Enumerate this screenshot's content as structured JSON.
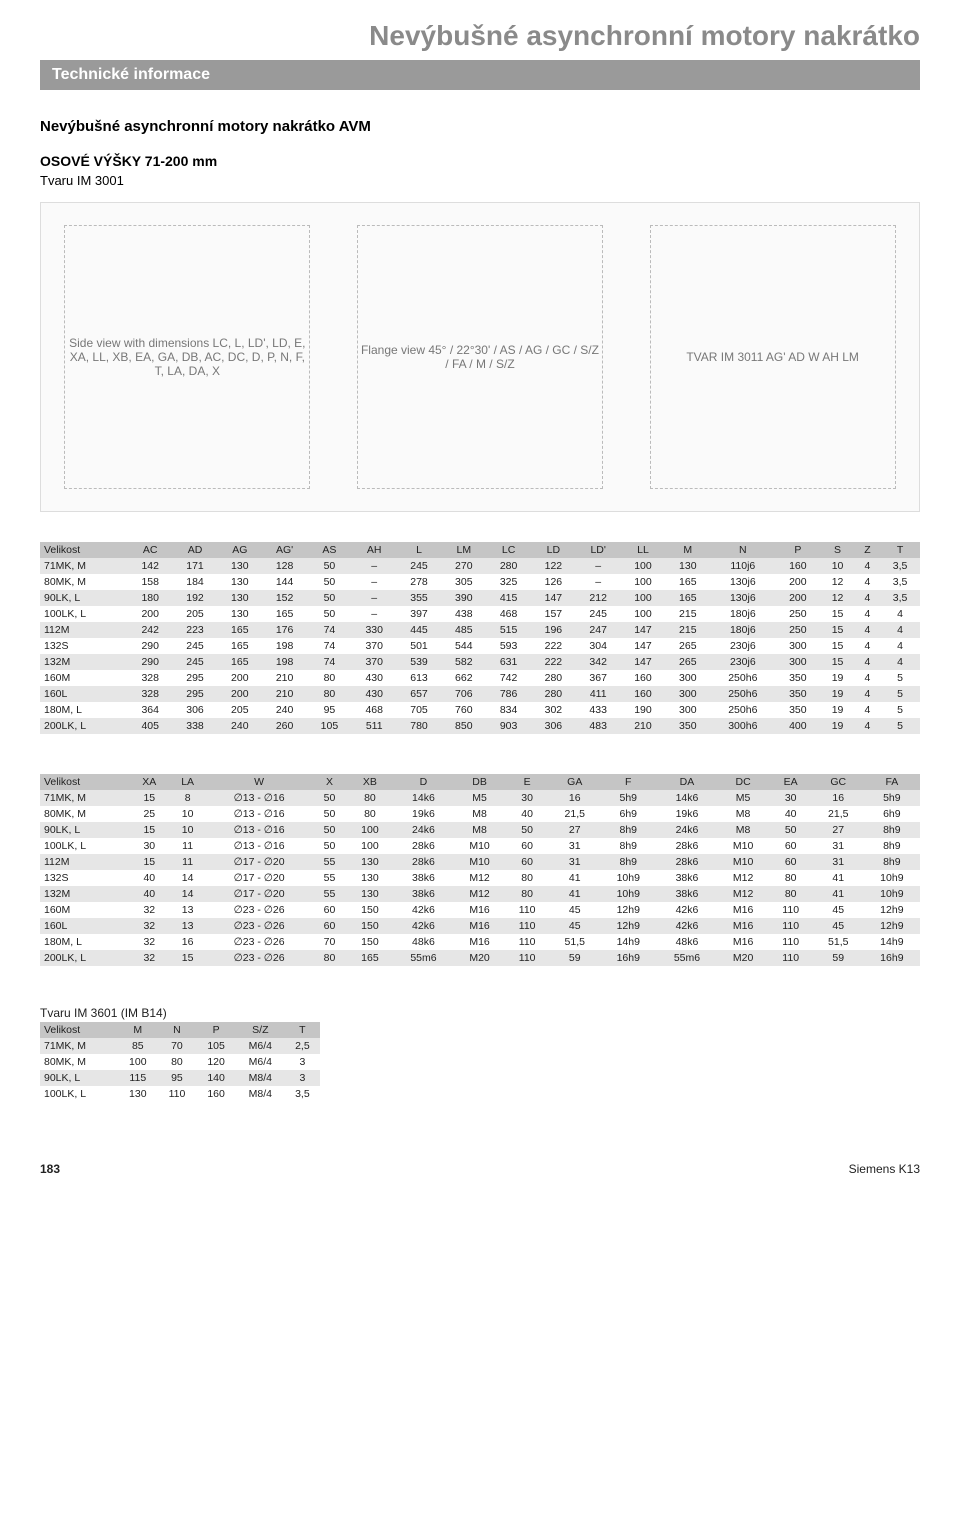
{
  "header": {
    "main_title": "Nevýbušné asynchronní motory nakrátko",
    "tech_bar": "Technické informace",
    "sub_heading": "Nevýbušné asynchronní motory nakrátko AVM",
    "section_title": "OSOVÉ VÝŠKY 71-200 mm",
    "section_note": "Tvaru IM 3001"
  },
  "diagram": {
    "label_left": "Side view with dimensions LC, L, LD', LD, E, XA, LL, XB, EA, GA, DB, AC, DC, D, P, N, F, T, LA, DA, X",
    "label_mid": "Flange view 45° / 22°30' / AS / AG / GC / S/Z / FA / M / S/Z",
    "label_right": "TVAR IM 3011\nAG' AD W AH LM"
  },
  "table1": {
    "columns": [
      "Velikost",
      "AC",
      "AD",
      "AG",
      "AG'",
      "AS",
      "AH",
      "L",
      "LM",
      "LC",
      "LD",
      "LD'",
      "LL",
      "M",
      "N",
      "P",
      "S",
      "Z",
      "T"
    ],
    "rows": [
      [
        "71MK, M",
        "142",
        "171",
        "130",
        "128",
        "50",
        "–",
        "245",
        "270",
        "280",
        "122",
        "–",
        "100",
        "130",
        "110j6",
        "160",
        "10",
        "4",
        "3,5"
      ],
      [
        "80MK, M",
        "158",
        "184",
        "130",
        "144",
        "50",
        "–",
        "278",
        "305",
        "325",
        "126",
        "–",
        "100",
        "165",
        "130j6",
        "200",
        "12",
        "4",
        "3,5"
      ],
      [
        "90LK, L",
        "180",
        "192",
        "130",
        "152",
        "50",
        "–",
        "355",
        "390",
        "415",
        "147",
        "212",
        "100",
        "165",
        "130j6",
        "200",
        "12",
        "4",
        "3,5"
      ],
      [
        "100LK, L",
        "200",
        "205",
        "130",
        "165",
        "50",
        "–",
        "397",
        "438",
        "468",
        "157",
        "245",
        "100",
        "215",
        "180j6",
        "250",
        "15",
        "4",
        "4"
      ],
      [
        "112M",
        "242",
        "223",
        "165",
        "176",
        "74",
        "330",
        "445",
        "485",
        "515",
        "196",
        "247",
        "147",
        "215",
        "180j6",
        "250",
        "15",
        "4",
        "4"
      ],
      [
        "132S",
        "290",
        "245",
        "165",
        "198",
        "74",
        "370",
        "501",
        "544",
        "593",
        "222",
        "304",
        "147",
        "265",
        "230j6",
        "300",
        "15",
        "4",
        "4"
      ],
      [
        "132M",
        "290",
        "245",
        "165",
        "198",
        "74",
        "370",
        "539",
        "582",
        "631",
        "222",
        "342",
        "147",
        "265",
        "230j6",
        "300",
        "15",
        "4",
        "4"
      ],
      [
        "160M",
        "328",
        "295",
        "200",
        "210",
        "80",
        "430",
        "613",
        "662",
        "742",
        "280",
        "367",
        "160",
        "300",
        "250h6",
        "350",
        "19",
        "4",
        "5"
      ],
      [
        "160L",
        "328",
        "295",
        "200",
        "210",
        "80",
        "430",
        "657",
        "706",
        "786",
        "280",
        "411",
        "160",
        "300",
        "250h6",
        "350",
        "19",
        "4",
        "5"
      ],
      [
        "180M, L",
        "364",
        "306",
        "205",
        "240",
        "95",
        "468",
        "705",
        "760",
        "834",
        "302",
        "433",
        "190",
        "300",
        "250h6",
        "350",
        "19",
        "4",
        "5"
      ],
      [
        "200LK, L",
        "405",
        "338",
        "240",
        "260",
        "105",
        "511",
        "780",
        "850",
        "903",
        "306",
        "483",
        "210",
        "350",
        "300h6",
        "400",
        "19",
        "4",
        "5"
      ]
    ]
  },
  "table2": {
    "columns": [
      "Velikost",
      "XA",
      "LA",
      "W",
      "X",
      "XB",
      "D",
      "DB",
      "E",
      "GA",
      "F",
      "DA",
      "DC",
      "EA",
      "GC",
      "FA"
    ],
    "rows": [
      [
        "71MK, M",
        "15",
        "8",
        "∅13 - ∅16",
        "50",
        "80",
        "14k6",
        "M5",
        "30",
        "16",
        "5h9",
        "14k6",
        "M5",
        "30",
        "16",
        "5h9"
      ],
      [
        "80MK, M",
        "25",
        "10",
        "∅13 - ∅16",
        "50",
        "80",
        "19k6",
        "M8",
        "40",
        "21,5",
        "6h9",
        "19k6",
        "M8",
        "40",
        "21,5",
        "6h9"
      ],
      [
        "90LK, L",
        "15",
        "10",
        "∅13 - ∅16",
        "50",
        "100",
        "24k6",
        "M8",
        "50",
        "27",
        "8h9",
        "24k6",
        "M8",
        "50",
        "27",
        "8h9"
      ],
      [
        "100LK, L",
        "30",
        "11",
        "∅13 - ∅16",
        "50",
        "100",
        "28k6",
        "M10",
        "60",
        "31",
        "8h9",
        "28k6",
        "M10",
        "60",
        "31",
        "8h9"
      ],
      [
        "112M",
        "15",
        "11",
        "∅17 - ∅20",
        "55",
        "130",
        "28k6",
        "M10",
        "60",
        "31",
        "8h9",
        "28k6",
        "M10",
        "60",
        "31",
        "8h9"
      ],
      [
        "132S",
        "40",
        "14",
        "∅17 - ∅20",
        "55",
        "130",
        "38k6",
        "M12",
        "80",
        "41",
        "10h9",
        "38k6",
        "M12",
        "80",
        "41",
        "10h9"
      ],
      [
        "132M",
        "40",
        "14",
        "∅17 - ∅20",
        "55",
        "130",
        "38k6",
        "M12",
        "80",
        "41",
        "10h9",
        "38k6",
        "M12",
        "80",
        "41",
        "10h9"
      ],
      [
        "160M",
        "32",
        "13",
        "∅23 - ∅26",
        "60",
        "150",
        "42k6",
        "M16",
        "110",
        "45",
        "12h9",
        "42k6",
        "M16",
        "110",
        "45",
        "12h9"
      ],
      [
        "160L",
        "32",
        "13",
        "∅23 - ∅26",
        "60",
        "150",
        "42k6",
        "M16",
        "110",
        "45",
        "12h9",
        "42k6",
        "M16",
        "110",
        "45",
        "12h9"
      ],
      [
        "180M, L",
        "32",
        "16",
        "∅23 - ∅26",
        "70",
        "150",
        "48k6",
        "M16",
        "110",
        "51,5",
        "14h9",
        "48k6",
        "M16",
        "110",
        "51,5",
        "14h9"
      ],
      [
        "200LK, L",
        "32",
        "15",
        "∅23 - ∅26",
        "80",
        "165",
        "55m6",
        "M20",
        "110",
        "59",
        "16h9",
        "55m6",
        "M20",
        "110",
        "59",
        "16h9"
      ]
    ]
  },
  "table3": {
    "caption": "Tvaru IM 3601 (IM B14)",
    "columns": [
      "Velikost",
      "M",
      "N",
      "P",
      "S/Z",
      "T"
    ],
    "rows": [
      [
        "71MK, M",
        "85",
        "70",
        "105",
        "M6/4",
        "2,5"
      ],
      [
        "80MK, M",
        "100",
        "80",
        "120",
        "M6/4",
        "3"
      ],
      [
        "90LK, L",
        "115",
        "95",
        "140",
        "M8/4",
        "3"
      ],
      [
        "100LK, L",
        "130",
        "110",
        "160",
        "M8/4",
        "3,5"
      ]
    ]
  },
  "footer": {
    "page_num": "183",
    "brand": "Siemens K13"
  }
}
